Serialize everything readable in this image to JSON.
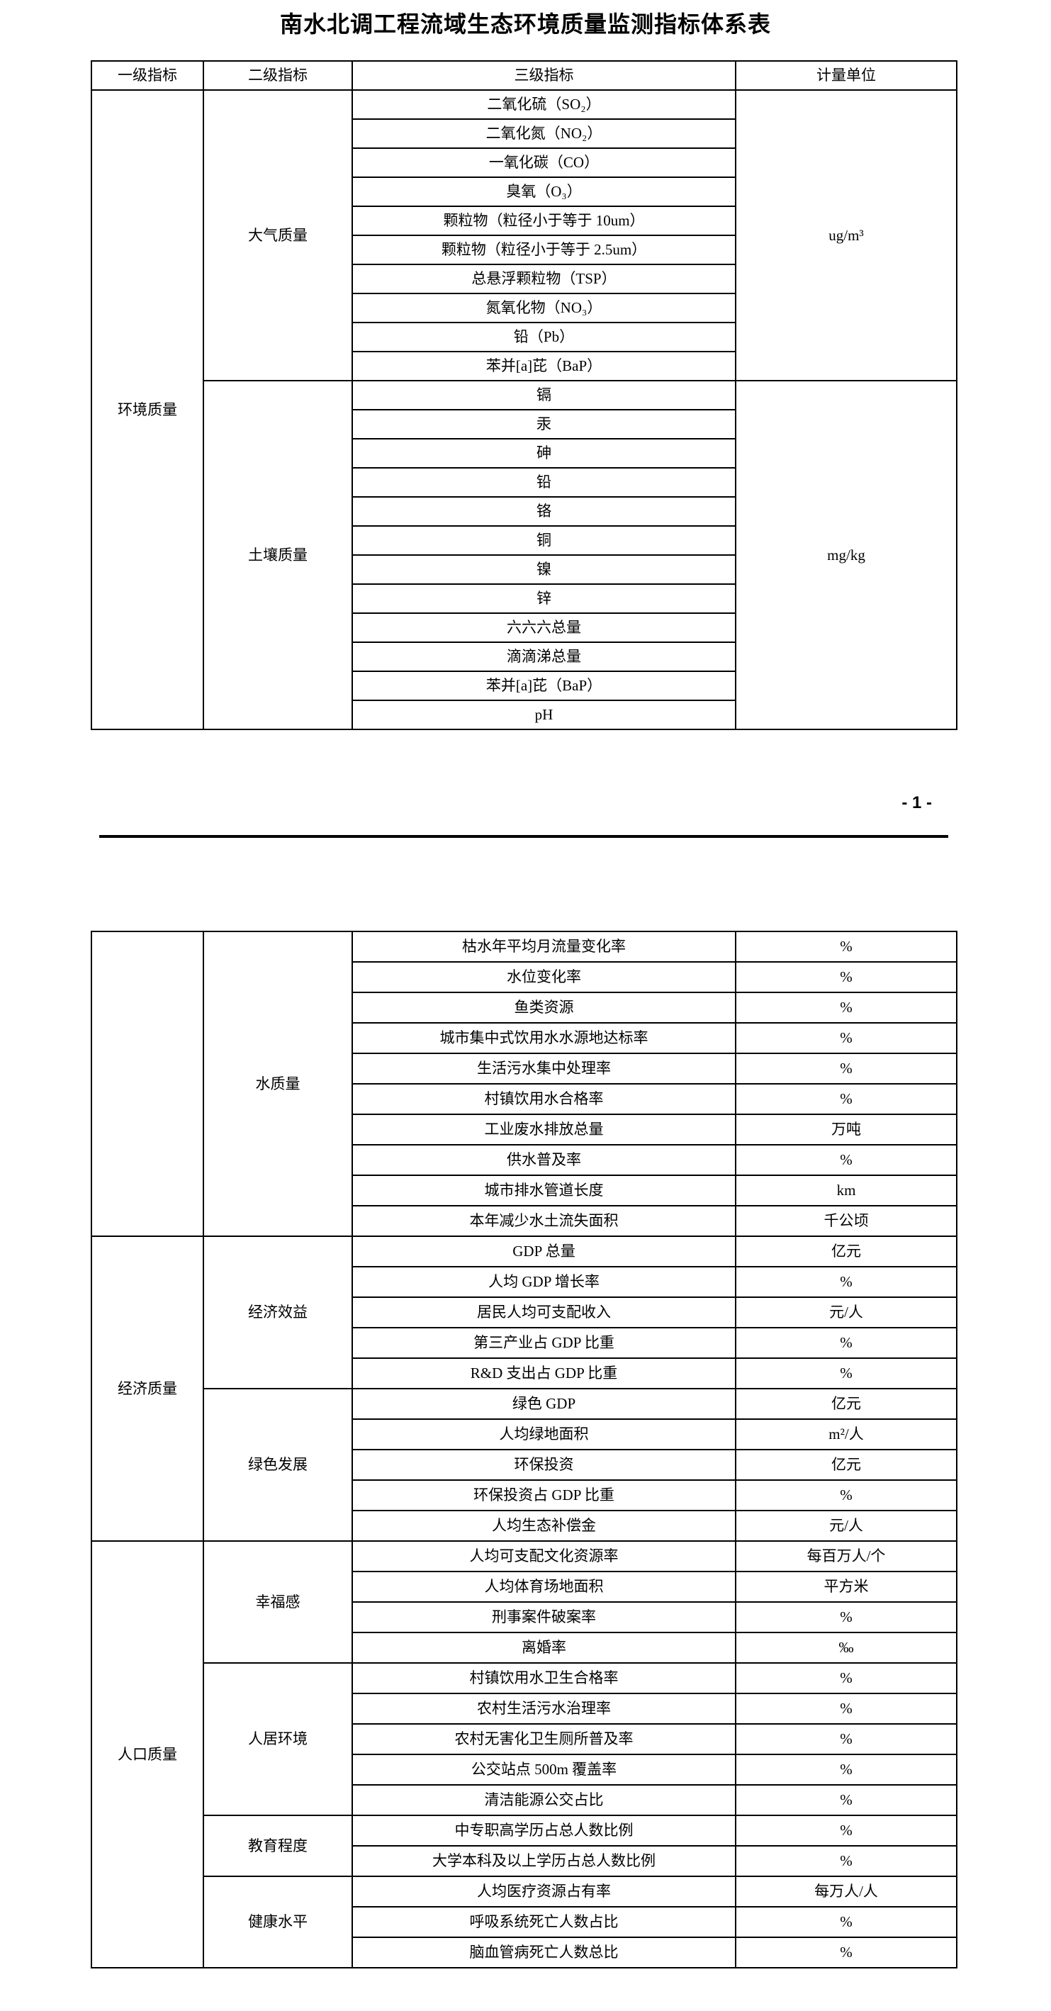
{
  "page": {
    "title": "南水北调工程流域生态环境质量监测指标体系表",
    "page_number": "- 1 -"
  },
  "colors": {
    "background": "#ffffff",
    "text": "#000000",
    "border": "#000000"
  },
  "table_headers": [
    "一级指标",
    "二级指标",
    "三级指标",
    "计量单位"
  ],
  "table1": {
    "level1": "环境质量",
    "groups": [
      {
        "level2": "大气质量",
        "unit": "ug/m³",
        "indicators": [
          "二氧化硫（SO₂）",
          "二氧化氮（NO₂）",
          "一氧化碳（CO）",
          "臭氧（O₃）",
          "颗粒物（粒径小于等于 10um）",
          "颗粒物（粒径小于等于 2.5um）",
          "总悬浮颗粒物（TSP）",
          "氮氧化物（NO₃）",
          "铅（Pb）",
          "苯并[a]芘（BaP）"
        ]
      },
      {
        "level2": "土壤质量",
        "unit": "mg/kg",
        "indicators": [
          "镉",
          "汞",
          "砷",
          "铅",
          "铬",
          "铜",
          "镍",
          "锌",
          "六六六总量",
          "滴滴涕总量",
          "苯并[a]芘（BaP）",
          "pH"
        ]
      }
    ]
  },
  "table2": {
    "sections": [
      {
        "level1": "",
        "groups": [
          {
            "level2": "水质量",
            "rows": [
              [
                "枯水年平均月流量变化率",
                "%"
              ],
              [
                "水位变化率",
                "%"
              ],
              [
                "鱼类资源",
                "%"
              ],
              [
                "城市集中式饮用水水源地达标率",
                "%"
              ],
              [
                "生活污水集中处理率",
                "%"
              ],
              [
                "村镇饮用水合格率",
                "%"
              ],
              [
                "工业废水排放总量",
                "万吨"
              ],
              [
                "供水普及率",
                "%"
              ],
              [
                "城市排水管道长度",
                "km"
              ],
              [
                "本年减少水土流失面积",
                "千公顷"
              ]
            ]
          }
        ]
      },
      {
        "level1": "经济质量",
        "groups": [
          {
            "level2": "经济效益",
            "rows": [
              [
                "GDP 总量",
                "亿元"
              ],
              [
                "人均 GDP 增长率",
                "%"
              ],
              [
                "居民人均可支配收入",
                "元/人"
              ],
              [
                "第三产业占 GDP 比重",
                "%"
              ],
              [
                "R&D 支出占 GDP 比重",
                "%"
              ]
            ]
          },
          {
            "level2": "绿色发展",
            "rows": [
              [
                "绿色 GDP",
                "亿元"
              ],
              [
                "人均绿地面积",
                "m²/人"
              ],
              [
                "环保投资",
                "亿元"
              ],
              [
                "环保投资占 GDP 比重",
                "%"
              ],
              [
                "人均生态补偿金",
                "元/人"
              ]
            ]
          }
        ]
      },
      {
        "level1": "人口质量",
        "groups": [
          {
            "level2": "幸福感",
            "rows": [
              [
                "人均可支配文化资源率",
                "每百万人/个"
              ],
              [
                "人均体育场地面积",
                "平方米"
              ],
              [
                "刑事案件破案率",
                "%"
              ],
              [
                "离婚率",
                "‰"
              ]
            ]
          },
          {
            "level2": "人居环境",
            "rows": [
              [
                "村镇饮用水卫生合格率",
                "%"
              ],
              [
                "农村生活污水治理率",
                "%"
              ],
              [
                "农村无害化卫生厕所普及率",
                "%"
              ],
              [
                "公交站点 500m 覆盖率",
                "%"
              ],
              [
                "清洁能源公交占比",
                "%"
              ]
            ]
          },
          {
            "level2": "教育程度",
            "rows": [
              [
                "中专职高学历占总人数比例",
                "%"
              ],
              [
                "大学本科及以上学历占总人数比例",
                "%"
              ]
            ]
          },
          {
            "level2": "健康水平",
            "rows": [
              [
                "人均医疗资源占有率",
                "每万人/人"
              ],
              [
                "呼吸系统死亡人数占比",
                "%"
              ],
              [
                "脑血管病死亡人数总比",
                "%"
              ]
            ]
          }
        ]
      }
    ]
  }
}
